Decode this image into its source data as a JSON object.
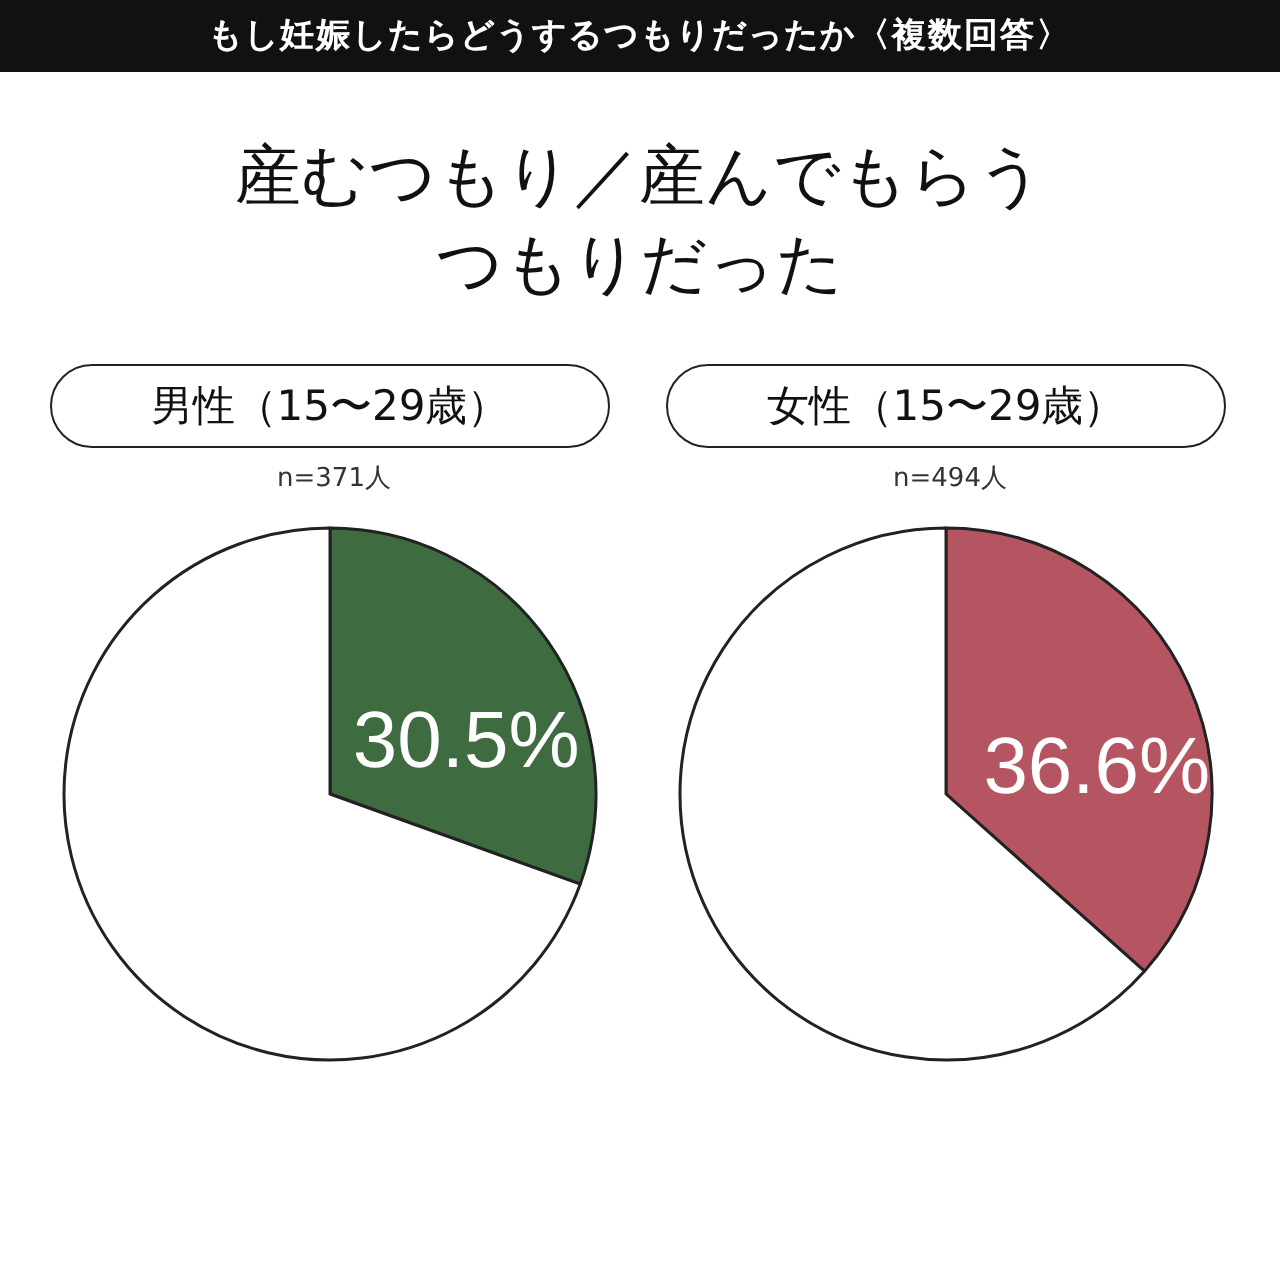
{
  "chart_data": [
    {
      "type": "pie",
      "title": "男性（15〜29歳）",
      "subtitle": "n=371人",
      "annotations": [
        "もし妊娠したらどうするつもりだったか〈複数回答〉",
        "産むつもり／産んでもらうつもりだった"
      ],
      "categories": [
        null,
        null
      ],
      "values": [
        30.5,
        69.5
      ],
      "colors": [
        "#3e6b40",
        "#ffffff"
      ],
      "value_labels": [
        "30.5%",
        null
      ]
    },
    {
      "type": "pie",
      "title": "女性（15〜29歳）",
      "subtitle": "n=494人",
      "categories": [
        null,
        null
      ],
      "values": [
        36.6,
        63.4
      ],
      "colors": [
        "#b55562",
        "#ffffff"
      ],
      "value_labels": [
        "36.6%",
        null
      ]
    }
  ]
}
